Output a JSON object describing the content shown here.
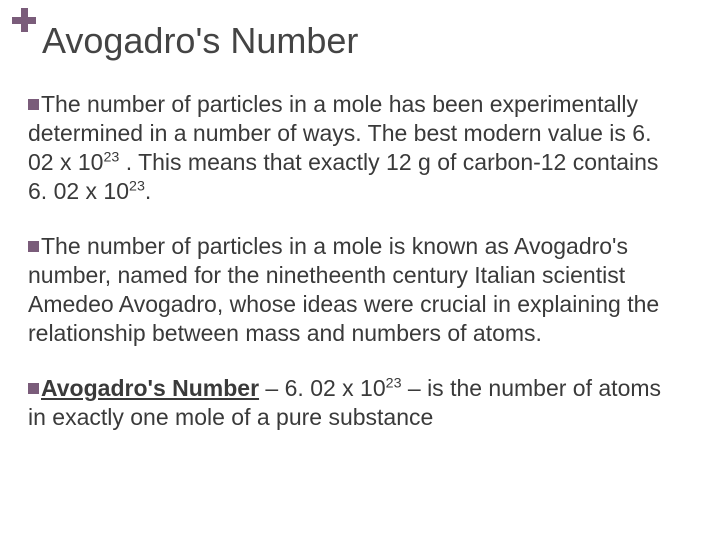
{
  "accent_color": "#7a5c7a",
  "text_color": "#3a3a3a",
  "title_color": "#444444",
  "background_color": "#ffffff",
  "title_fontsize": 36,
  "body_fontsize": 23,
  "title": "Avogadro's Number",
  "bullets": [
    {
      "lead": "The",
      "rest_before_sup1": " number of particles in a mole has been experimentally determined in a number of ways. The best modern value is 6. 02 x 10",
      "sup1": "23",
      "mid": " .  This means that exactly 12 g of carbon-12 contains 6. 02 x 10",
      "sup2": "23",
      "tail": "."
    },
    {
      "lead": "The",
      "rest": " number of particles in a mole is known as Avogadro's number, named for the ninetheenth century Italian scientist Amedeo Avogadro, whose ideas were crucial in explaining the relationship between mass and numbers of atoms."
    },
    {
      "lead_bold_underline": "Avogadro's Number",
      "mid1": " – 6. 02 x 10",
      "sup1": "23",
      "tail": " – is the number of atoms in exactly one mole of a pure substance"
    }
  ]
}
